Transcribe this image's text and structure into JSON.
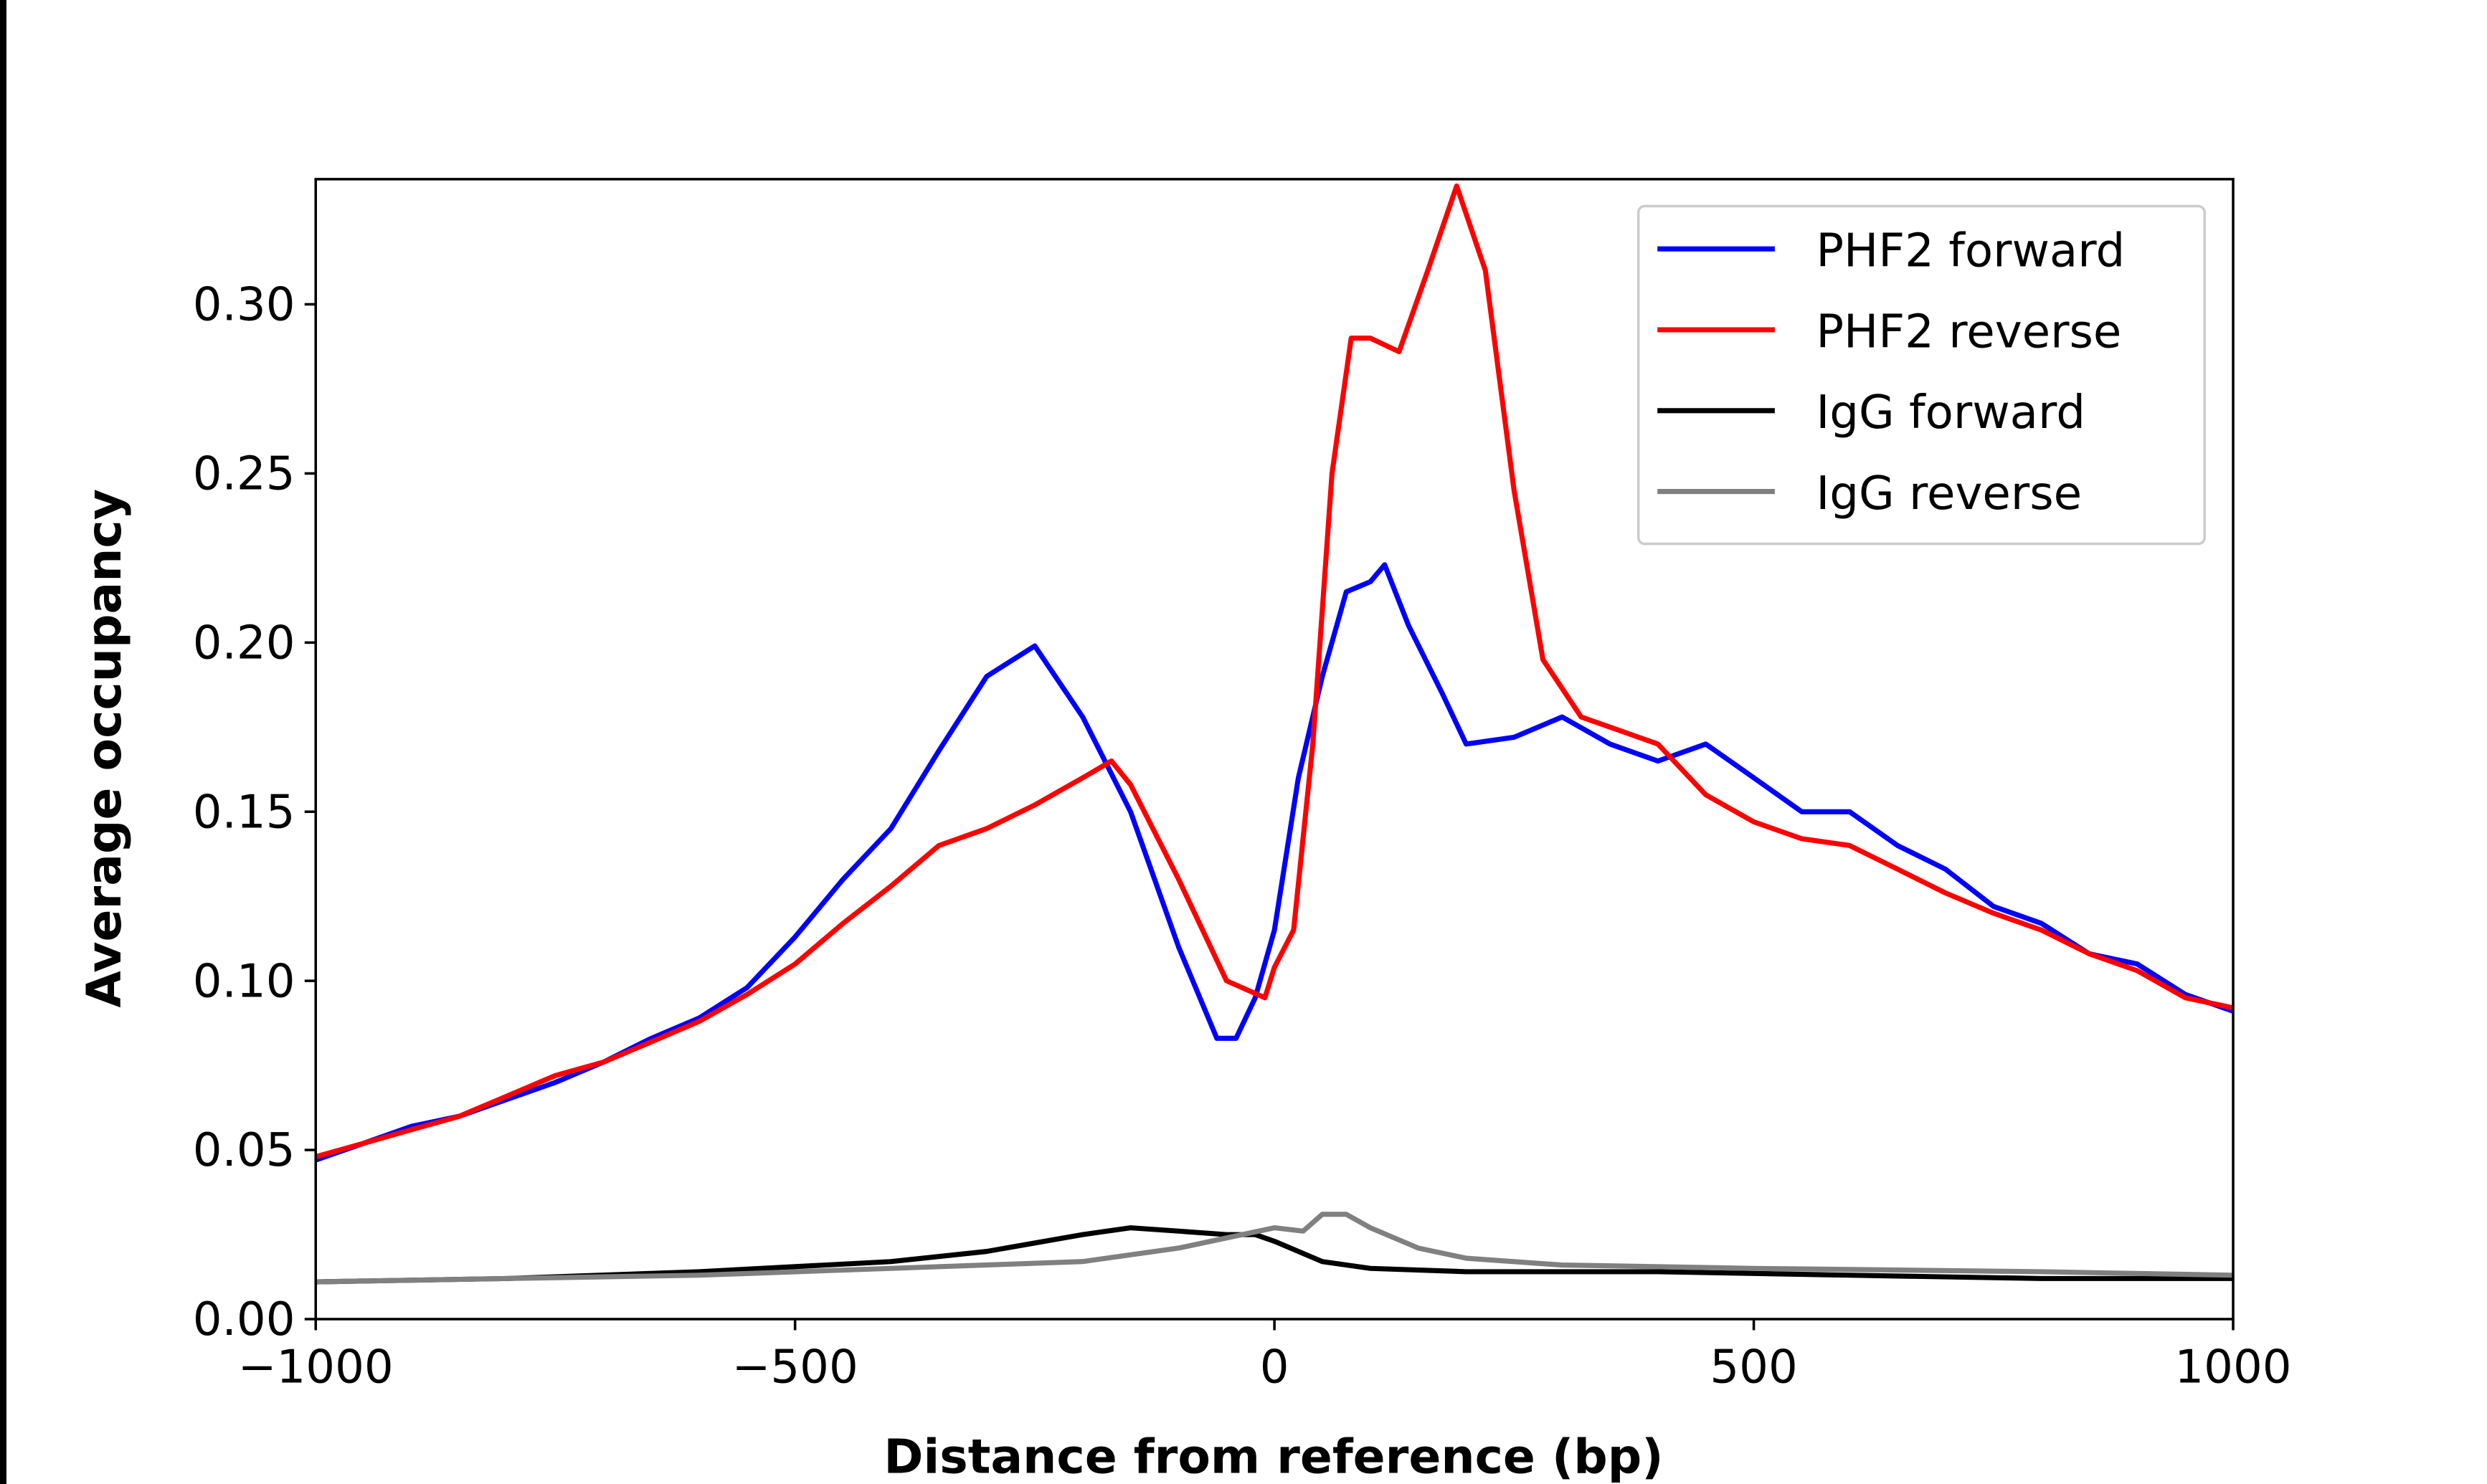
{
  "chart_data": {
    "type": "line",
    "title": "",
    "xlabel": "Distance from reference (bp)",
    "ylabel": "Average occupancy",
    "xlim": [
      -1000,
      1000
    ],
    "ylim": [
      0,
      0.337
    ],
    "xticks": [
      -1000,
      -500,
      0,
      500,
      1000
    ],
    "xtick_labels": [
      "−1000",
      "−500",
      "0",
      "500",
      "1000"
    ],
    "yticks": [
      0,
      0.05,
      0.1,
      0.15,
      0.2,
      0.25,
      0.3
    ],
    "ytick_labels": [
      "0.00",
      "0.05",
      "0.10",
      "0.15",
      "0.20",
      "0.25",
      "0.30"
    ],
    "grid": false,
    "legend_position": "top-right",
    "series": [
      {
        "name": "PHF2 forward",
        "color": "#0000ff",
        "x": [
          -1000,
          -950,
          -900,
          -850,
          -800,
          -750,
          -700,
          -650,
          -600,
          -550,
          -500,
          -450,
          -400,
          -350,
          -300,
          -250,
          -200,
          -150,
          -100,
          -60,
          -40,
          -20,
          0,
          25,
          50,
          75,
          100,
          115,
          140,
          175,
          200,
          250,
          300,
          350,
          400,
          450,
          500,
          550,
          600,
          650,
          700,
          750,
          800,
          850,
          900,
          950,
          1000
        ],
        "y": [
          0.047,
          0.052,
          0.057,
          0.06,
          0.065,
          0.07,
          0.076,
          0.083,
          0.089,
          0.098,
          0.113,
          0.13,
          0.145,
          0.168,
          0.19,
          0.199,
          0.178,
          0.15,
          0.11,
          0.083,
          0.083,
          0.095,
          0.115,
          0.16,
          0.19,
          0.215,
          0.218,
          0.223,
          0.205,
          0.185,
          0.17,
          0.172,
          0.178,
          0.17,
          0.165,
          0.17,
          0.16,
          0.15,
          0.15,
          0.14,
          0.133,
          0.122,
          0.117,
          0.108,
          0.105,
          0.096,
          0.091
        ]
      },
      {
        "name": "PHF2 reverse",
        "color": "#ff0000",
        "x": [
          -1000,
          -950,
          -900,
          -850,
          -800,
          -750,
          -700,
          -650,
          -600,
          -550,
          -500,
          -450,
          -400,
          -350,
          -300,
          -250,
          -200,
          -170,
          -150,
          -100,
          -50,
          -10,
          0,
          20,
          40,
          60,
          80,
          100,
          130,
          160,
          190,
          220,
          250,
          280,
          320,
          370,
          400,
          450,
          500,
          550,
          600,
          650,
          700,
          750,
          800,
          850,
          900,
          950,
          1000
        ],
        "y": [
          0.048,
          0.052,
          0.056,
          0.06,
          0.066,
          0.072,
          0.076,
          0.082,
          0.088,
          0.096,
          0.105,
          0.117,
          0.128,
          0.14,
          0.145,
          0.152,
          0.16,
          0.165,
          0.158,
          0.13,
          0.1,
          0.095,
          0.104,
          0.115,
          0.17,
          0.25,
          0.29,
          0.29,
          0.286,
          0.31,
          0.335,
          0.31,
          0.245,
          0.195,
          0.178,
          0.173,
          0.17,
          0.155,
          0.147,
          0.142,
          0.14,
          0.133,
          0.126,
          0.12,
          0.115,
          0.108,
          0.103,
          0.095,
          0.092
        ]
      },
      {
        "name": "IgG forward",
        "color": "#000000",
        "x": [
          -1000,
          -800,
          -600,
          -400,
          -300,
          -200,
          -150,
          -100,
          -50,
          -20,
          0,
          50,
          100,
          200,
          400,
          600,
          800,
          1000
        ],
        "y": [
          0.011,
          0.012,
          0.014,
          0.017,
          0.02,
          0.025,
          0.027,
          0.026,
          0.025,
          0.025,
          0.023,
          0.017,
          0.015,
          0.014,
          0.014,
          0.013,
          0.012,
          0.012
        ]
      },
      {
        "name": "IgG reverse",
        "color": "#808080",
        "x": [
          -1000,
          -800,
          -600,
          -400,
          -200,
          -100,
          -50,
          0,
          30,
          50,
          75,
          100,
          150,
          200,
          300,
          500,
          800,
          1000
        ],
        "y": [
          0.011,
          0.012,
          0.013,
          0.015,
          0.017,
          0.021,
          0.024,
          0.027,
          0.026,
          0.031,
          0.031,
          0.027,
          0.021,
          0.018,
          0.016,
          0.015,
          0.014,
          0.013
        ]
      }
    ]
  }
}
